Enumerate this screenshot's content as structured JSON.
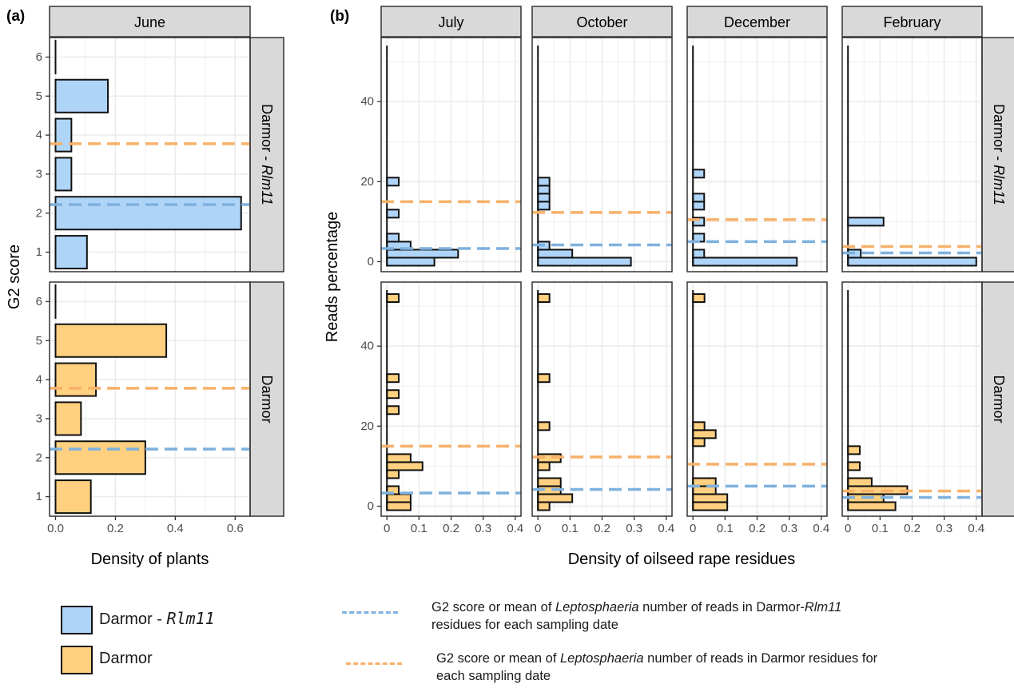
{
  "panel_labels": {
    "a": "(a)",
    "b": "(b)"
  },
  "colors": {
    "rlm11_fill": "#aed4f8",
    "darmor_fill": "#ffd07f",
    "rlm11_line": "#7fb1de",
    "darmor_line": "#f7b16a",
    "strip_fill": "#d9d9d9",
    "grid": "#ebebeb"
  },
  "chart_data": [
    {
      "panel": "(a)",
      "type": "bar",
      "orientation": "horizontal",
      "xlabel": "Density of plants",
      "ylabel": "G2 score",
      "xlim": [
        -0.02,
        0.65
      ],
      "x_ticks": [
        "0.0",
        "0.2",
        "0.4",
        "0.6"
      ],
      "ylim": [
        0.5,
        6.5
      ],
      "y_ticks": [
        "1",
        "2",
        "3",
        "4",
        "5",
        "6"
      ],
      "columns": [
        "June"
      ],
      "rows": [
        "Darmor - Rlm11",
        "Darmor"
      ],
      "facets": [
        {
          "column": "June",
          "row": "Darmor - Rlm11",
          "series": "Darmor - Rlm11",
          "g2": [
            1,
            2,
            3,
            4,
            5,
            6
          ],
          "density": [
            0.105,
            0.62,
            0.053,
            0.053,
            0.175,
            0.0
          ],
          "mean_rlm11": 2.22,
          "mean_darmor": 3.78
        },
        {
          "column": "June",
          "row": "Darmor",
          "series": "Darmor",
          "g2": [
            1,
            2,
            3,
            4,
            5,
            6
          ],
          "density": [
            0.118,
            0.3,
            0.085,
            0.135,
            0.37,
            0.0
          ],
          "mean_rlm11": 2.22,
          "mean_darmor": 3.78
        }
      ],
      "grid": true
    },
    {
      "panel": "(b)",
      "type": "bar",
      "orientation": "horizontal",
      "xlabel": "Density of oilseed rape residues",
      "ylabel": "Reads percentage",
      "xlim": [
        -0.018,
        0.418
      ],
      "x_ticks": [
        "0",
        "0.1",
        "0.2",
        "0.3",
        "0.4"
      ],
      "ylim": [
        -2.5,
        56
      ],
      "y_ticks": [
        "0",
        "20",
        "40"
      ],
      "bin_width": 2,
      "columns": [
        "July",
        "October",
        "December",
        "February"
      ],
      "rows": [
        "Darmor - Rlm11",
        "Darmor"
      ],
      "facets": [
        {
          "column": "July",
          "row": "Darmor - Rlm11",
          "series": "Darmor - Rlm11",
          "bins": [
            0,
            2,
            4,
            6,
            12,
            20
          ],
          "density": [
            0.148,
            0.222,
            0.074,
            0.037,
            0.037,
            0.037
          ],
          "mean_rlm11": 3.3,
          "mean_darmor": 15.0
        },
        {
          "column": "October",
          "row": "Darmor - Rlm11",
          "series": "Darmor - Rlm11",
          "bins": [
            0,
            2,
            4,
            14,
            16,
            18,
            20
          ],
          "density": [
            0.29,
            0.107,
            0.036,
            0.036,
            0.036,
            0.036,
            0.036
          ],
          "mean_rlm11": 4.2,
          "mean_darmor": 12.3
        },
        {
          "column": "December",
          "row": "Darmor - Rlm11",
          "series": "Darmor - Rlm11",
          "bins": [
            0,
            2,
            6,
            10,
            14,
            16,
            22
          ],
          "density": [
            0.324,
            0.035,
            0.035,
            0.035,
            0.035,
            0.035,
            0.035
          ],
          "mean_rlm11": 5.0,
          "mean_darmor": 10.5
        },
        {
          "column": "February",
          "row": "Darmor - Rlm11",
          "series": "Darmor - Rlm11",
          "bins": [
            0,
            2,
            10
          ],
          "density": [
            0.4,
            0.04,
            0.111
          ],
          "mean_rlm11": 2.2,
          "mean_darmor": 3.8
        },
        {
          "column": "July",
          "row": "Darmor",
          "series": "Darmor",
          "bins": [
            0,
            2,
            4,
            8,
            10,
            12,
            24,
            28,
            32,
            52
          ],
          "density": [
            0.074,
            0.074,
            0.037,
            0.037,
            0.111,
            0.074,
            0.037,
            0.037,
            0.037,
            0.037
          ],
          "mean_rlm11": 3.3,
          "mean_darmor": 15.0
        },
        {
          "column": "October",
          "row": "Darmor",
          "series": "Darmor",
          "bins": [
            0,
            2,
            4,
            6,
            10,
            12,
            20,
            32,
            52
          ],
          "density": [
            0.036,
            0.107,
            0.071,
            0.071,
            0.036,
            0.071,
            0.036,
            0.036,
            0.036
          ],
          "mean_rlm11": 4.2,
          "mean_darmor": 12.3
        },
        {
          "column": "December",
          "row": "Darmor",
          "series": "Darmor",
          "bins": [
            0,
            2,
            4,
            6,
            16,
            18,
            20,
            52
          ],
          "density": [
            0.107,
            0.107,
            0.071,
            0.071,
            0.036,
            0.071,
            0.036,
            0.036
          ],
          "mean_rlm11": 5.0,
          "mean_darmor": 10.5
        },
        {
          "column": "February",
          "row": "Darmor",
          "series": "Darmor",
          "bins": [
            0,
            2,
            4,
            6,
            10,
            14
          ],
          "density": [
            0.148,
            0.111,
            0.185,
            0.074,
            0.037,
            0.037
          ],
          "mean_rlm11": 2.2,
          "mean_darmor": 3.8
        }
      ],
      "grid": true
    }
  ],
  "legend": {
    "fill": [
      {
        "label": "Darmor - ",
        "italic": "Rlm11",
        "color": "#aed4f8"
      },
      {
        "label": "Darmor",
        "italic": "",
        "color": "#ffd07f"
      }
    ],
    "lines": [
      {
        "color": "#7fb1de",
        "text_before": "G2 score or mean of ",
        "text_italic": "Leptosphaeria",
        "text_middle": " number of reads in Darmor-",
        "text_italic2": "Rlm11",
        "text_after": " residues for each sampling date"
      },
      {
        "color": "#f7b16a",
        "text_before": "G2 score or mean of ",
        "text_italic": "Leptosphaeria",
        "text_middle": " number of reads in Darmor residues for each sampling date",
        "text_italic2": "",
        "text_after": ""
      }
    ]
  }
}
